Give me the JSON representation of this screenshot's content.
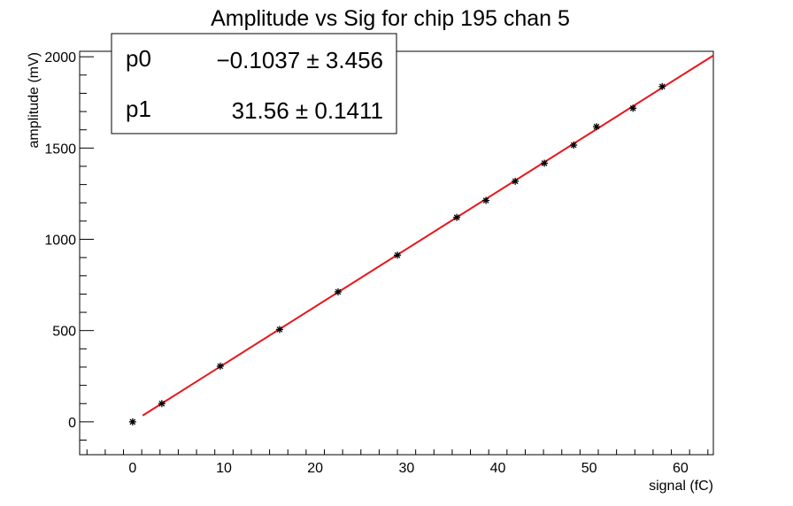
{
  "chart_data": {
    "type": "scatter",
    "title": "Amplitude vs Sig for chip 195 chan 5",
    "xlabel": "signal (fC)",
    "ylabel": "amplitude (mV)",
    "xlim": [
      -5.8,
      63.6
    ],
    "ylim": [
      -180,
      2030
    ],
    "x_ticks": [
      0,
      10,
      20,
      30,
      40,
      50,
      60
    ],
    "y_ticks": [
      0,
      500,
      1000,
      1500,
      2000
    ],
    "grid": false,
    "series": [
      {
        "marker": "star",
        "color": "#000000",
        "x": [
          0,
          3.2,
          9.6,
          16.1,
          22.5,
          29.0,
          35.5,
          38.7,
          41.9,
          45.1,
          48.3,
          50.8,
          54.8,
          58.0
        ],
        "y": [
          0,
          100,
          305,
          506,
          712,
          913,
          1120,
          1213,
          1318,
          1417,
          1516,
          1617,
          1718,
          1837
        ]
      }
    ],
    "fit": {
      "type": "line",
      "color": "#e8161b",
      "x_range": [
        1.1,
        63.6
      ],
      "p0": -0.1037,
      "p1": 31.56
    },
    "stats_box": {
      "position": "top-left",
      "rows": [
        {
          "name": "p0",
          "value": "−0.1037 ± 3.456"
        },
        {
          "name": "p1",
          "value": "31.56 ± 0.1411"
        }
      ]
    }
  }
}
